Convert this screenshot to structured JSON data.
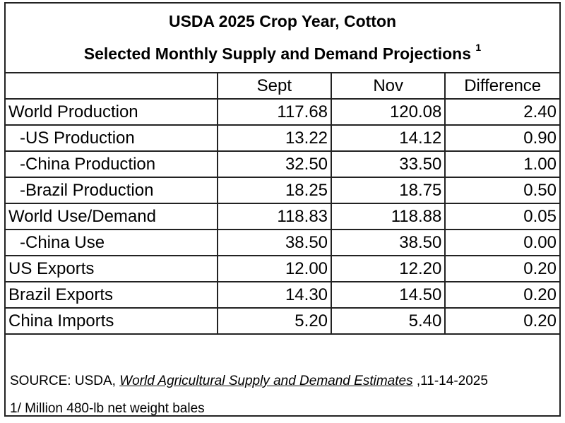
{
  "title": "USDA 2025 Crop Year, Cotton",
  "subtitle": "Selected Monthly Supply and Demand Projections",
  "subtitle_footnote_marker": "1",
  "columns": [
    "",
    "Sept",
    "Nov",
    "Difference"
  ],
  "rows": [
    {
      "label": "World Production",
      "sept": "117.68",
      "nov": "120.08",
      "diff": "2.40",
      "indent": false
    },
    {
      "label": "-US Production",
      "sept": "13.22",
      "nov": "14.12",
      "diff": "0.90",
      "indent": true
    },
    {
      "label": "-China Production",
      "sept": "32.50",
      "nov": "33.50",
      "diff": "1.00",
      "indent": true
    },
    {
      "label": "-Brazil Production",
      "sept": "18.25",
      "nov": "18.75",
      "diff": "0.50",
      "indent": true
    },
    {
      "label": "World Use/Demand",
      "sept": "118.83",
      "nov": "118.88",
      "diff": "0.05",
      "indent": false
    },
    {
      "label": "-China Use",
      "sept": "38.50",
      "nov": "38.50",
      "diff": "0.00",
      "indent": true
    },
    {
      "label": "US Exports",
      "sept": "12.00",
      "nov": "12.20",
      "diff": "0.20",
      "indent": false
    },
    {
      "label": "Brazil Exports",
      "sept": "14.30",
      "nov": "14.50",
      "diff": "0.20",
      "indent": false
    },
    {
      "label": "China Imports",
      "sept": "5.20",
      "nov": "5.40",
      "diff": "0.20",
      "indent": false
    }
  ],
  "footer": {
    "source_prefix": "SOURCE: USDA, ",
    "source_title": "World Agricultural Supply and Demand Estimates",
    "source_suffix": " ,11-14-2025",
    "note": "1/ Million 480-lb net weight bales"
  }
}
